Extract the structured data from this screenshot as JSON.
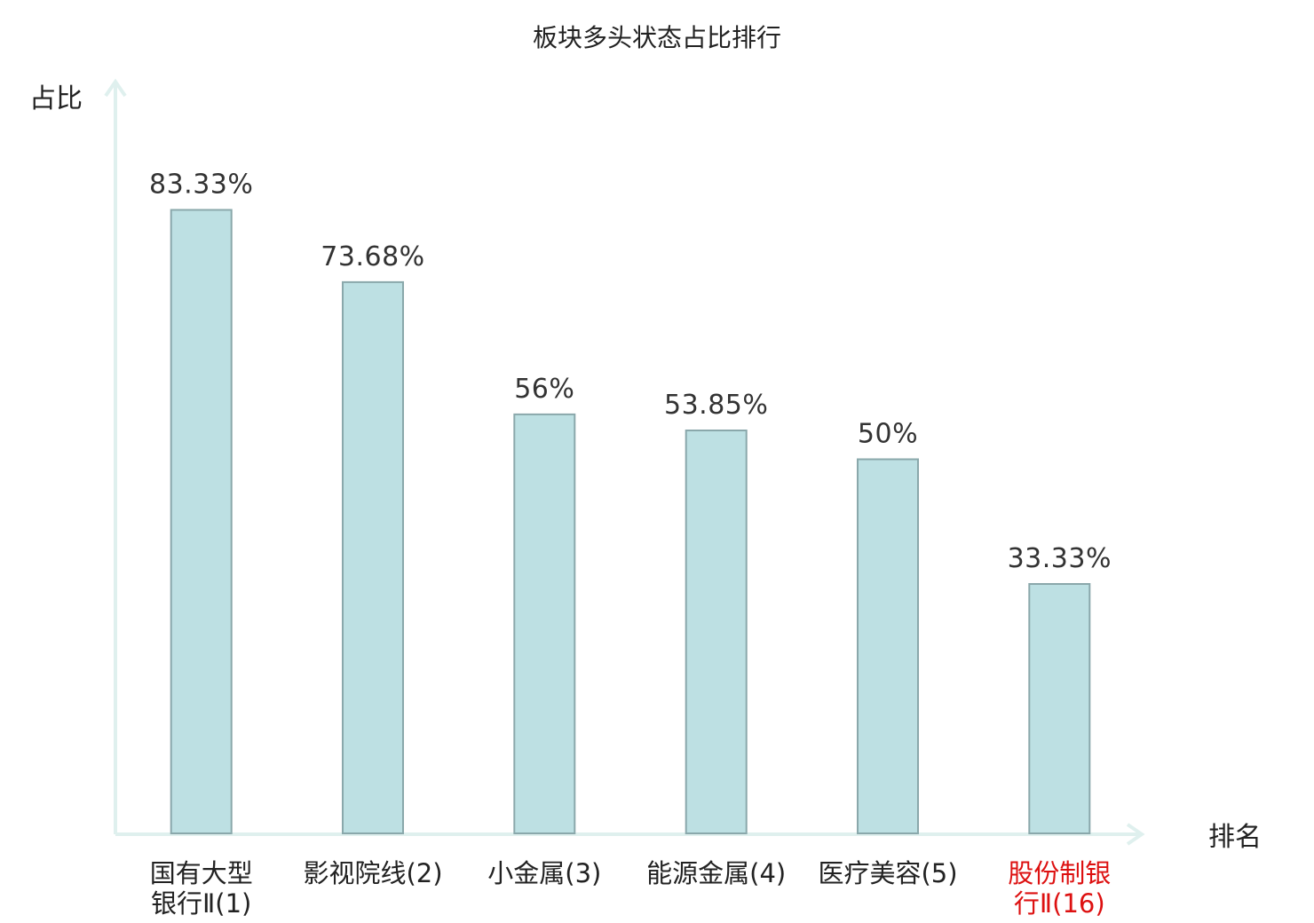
{
  "chart_data": {
    "type": "bar",
    "title": "板块多头状态占比排行",
    "ylabel": "占比",
    "xlabel": "排名",
    "ylim": [
      0,
      100
    ],
    "grid": false,
    "categories": [
      {
        "lines": [
          "国有大型",
          "银行Ⅱ(1)"
        ],
        "highlight": false
      },
      {
        "lines": [
          "影视院线(2)"
        ],
        "highlight": false
      },
      {
        "lines": [
          "小金属(3)"
        ],
        "highlight": false
      },
      {
        "lines": [
          "能源金属(4)"
        ],
        "highlight": false
      },
      {
        "lines": [
          "医疗美容(5)"
        ],
        "highlight": false
      },
      {
        "lines": [
          "股份制银",
          "行Ⅱ(16)"
        ],
        "highlight": true
      }
    ],
    "values": [
      83.33,
      73.68,
      56,
      53.85,
      50,
      33.33
    ],
    "value_labels": [
      "83.33%",
      "73.68%",
      "56%",
      "53.85%",
      "50%",
      "33.33%"
    ],
    "colors": {
      "bar_fill": "#bde0e3",
      "bar_stroke": "#8aa8ab",
      "axis": "#dff0ee",
      "highlight_text": "#dd1111"
    }
  }
}
